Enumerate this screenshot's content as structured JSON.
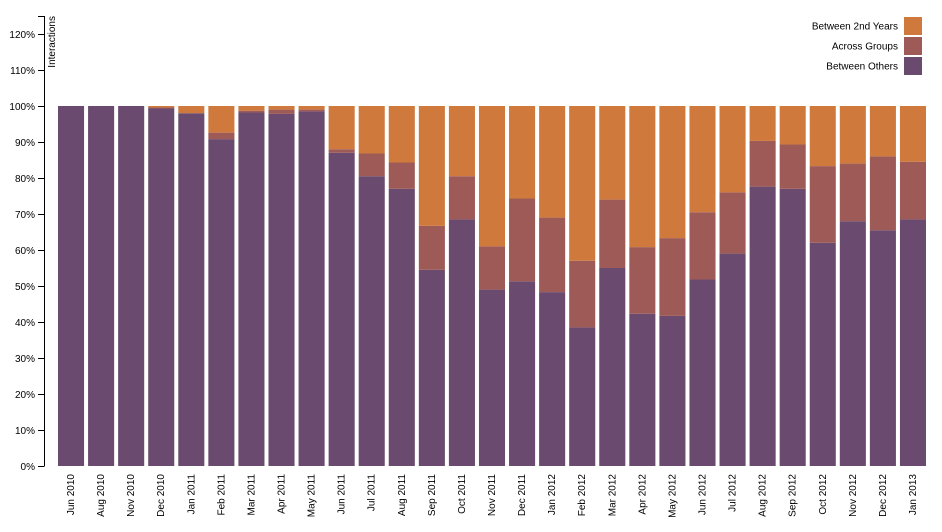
{
  "chart_data": {
    "type": "bar",
    "stacked": true,
    "normalized": true,
    "ylabel": "Interactions",
    "ylim": [
      0,
      125
    ],
    "y_ticks": [
      "0%",
      "10%",
      "20%",
      "30%",
      "40%",
      "50%",
      "60%",
      "70%",
      "80%",
      "90%",
      "100%",
      "110%",
      "120%"
    ],
    "legend_position": "top-right",
    "grid": false,
    "categories": [
      "Jun 2010",
      "Aug 2010",
      "Nov 2010",
      "Dec 2010",
      "Jan 2011",
      "Feb 2011",
      "Mar 2011",
      "Apr 2011",
      "May 2011",
      "Jun 2011",
      "Jul 2011",
      "Aug 2011",
      "Sep 2011",
      "Oct 2011",
      "Nov 2011",
      "Dec 2011",
      "Jan 2012",
      "Feb 2012",
      "Mar 2012",
      "Apr 2012",
      "May 2012",
      "Jun 2012",
      "Jul 2012",
      "Aug 2012",
      "Sep 2012",
      "Oct 2012",
      "Nov 2012",
      "Dec 2012",
      "Jan 2013"
    ],
    "series": [
      {
        "name": "Between Others",
        "color": "#6a4a6e",
        "values": [
          100,
          100,
          100,
          99.3,
          98,
          90.8,
          98.2,
          97.8,
          98.5,
          87,
          80.5,
          77,
          54.5,
          68.5,
          49,
          51.3,
          48.3,
          38.5,
          55,
          42.3,
          41.7,
          51.8,
          59,
          77.6,
          77,
          62,
          68,
          65.5,
          68.5
        ]
      },
      {
        "name": "Across Groups",
        "color": "#9e5a56",
        "values": [
          0,
          0,
          0,
          0.3,
          0,
          1.8,
          0.5,
          1.2,
          0.5,
          1,
          6.3,
          7.3,
          12.2,
          12,
          12,
          23,
          20.7,
          18.5,
          19,
          18.5,
          21.6,
          18.7,
          17,
          12.7,
          12.3,
          21.3,
          16,
          20.5,
          16
        ]
      },
      {
        "name": "Between 2nd Years",
        "color": "#cf7a3c",
        "values": [
          0,
          0,
          0,
          0.4,
          2,
          7.4,
          1.3,
          1,
          1,
          12,
          13.2,
          15.7,
          33.3,
          19.5,
          39,
          25.7,
          31,
          43,
          26,
          39.2,
          36.7,
          29.5,
          24,
          9.7,
          10.7,
          16.7,
          16,
          14,
          15.5
        ]
      }
    ]
  }
}
